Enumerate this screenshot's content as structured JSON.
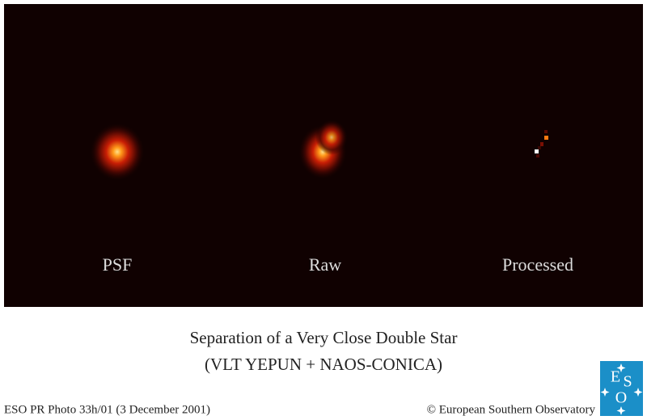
{
  "panels": [
    {
      "label": "PSF"
    },
    {
      "label": "Raw"
    },
    {
      "label": "Processed"
    }
  ],
  "caption": {
    "title": "Separation of a Very Close Double Star",
    "subtitle": "(VLT YEPUN + NAOS-CONICA)"
  },
  "footer": {
    "credit": "ESO PR Photo 33h/01 (3 December 2001)",
    "copyright": "© European Southern Observatory"
  },
  "logo": {
    "letters": [
      "E",
      "S",
      "O"
    ]
  }
}
